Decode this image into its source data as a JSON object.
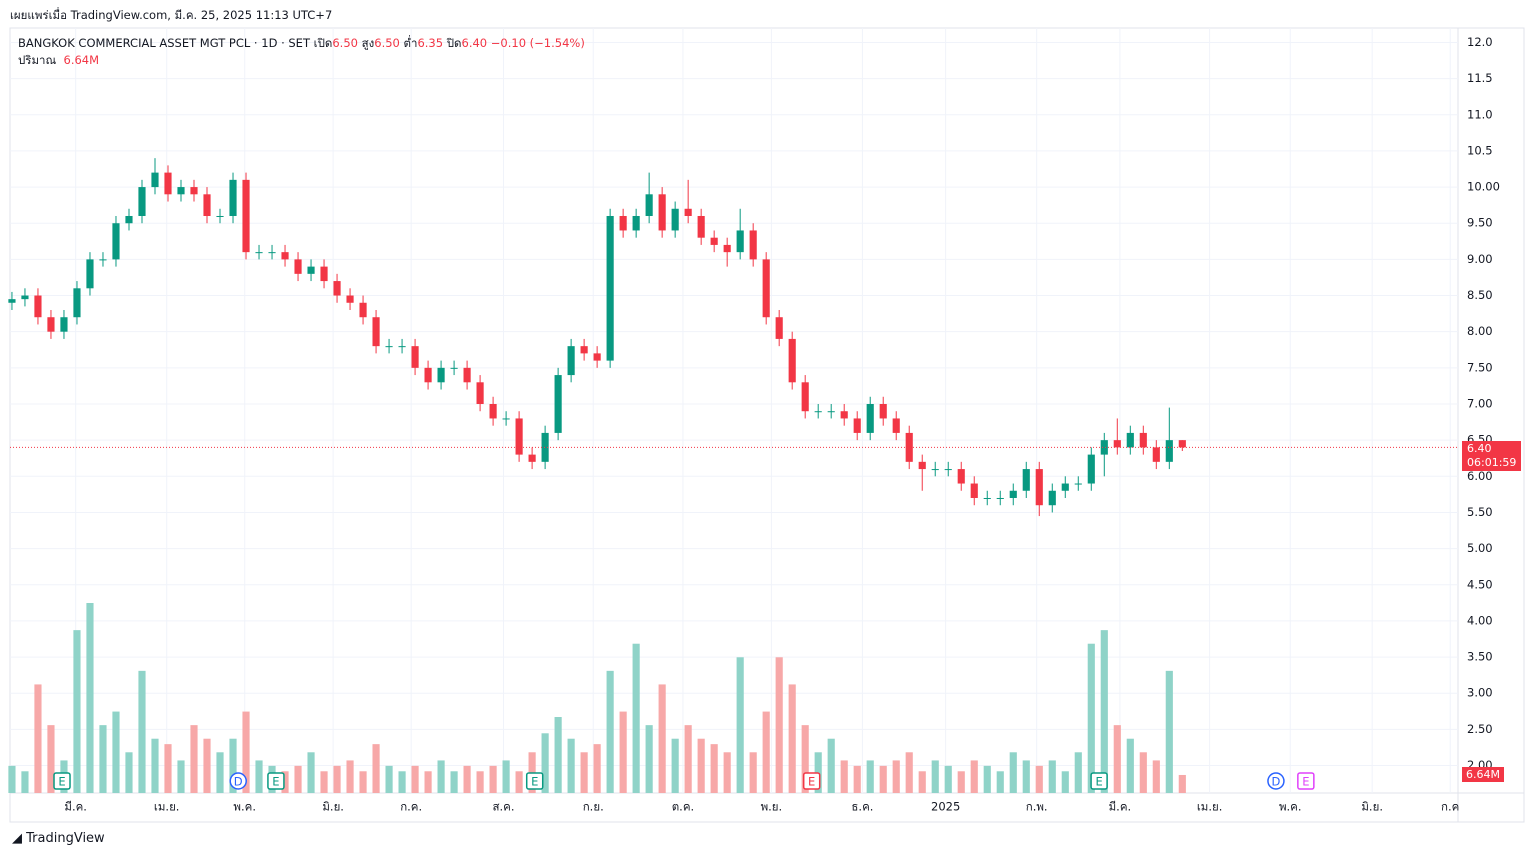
{
  "header": {
    "published": "เผยแพร่เมื่อ TradingView.com, มี.ค. 25, 2025 11:13 UTC+7",
    "brand": "TradingView"
  },
  "legend": {
    "symbol": "BANGKOK COMMERCIAL ASSET MGT PCL · 1D · SET",
    "open_label": "เปิด",
    "open": "6.50",
    "high_label": "สูง",
    "high": "6.50",
    "low_label": "ต่ำ",
    "low": "6.35",
    "close_label": "ปิด",
    "close": "6.40",
    "change": "−0.10 (−1.54%)",
    "volume_label": "ปริมาณ",
    "volume": "6.64M"
  },
  "price_tag": {
    "price": "6.40",
    "countdown": "06:01:59",
    "volume": "6.64M"
  },
  "chart_data": {
    "type": "candlestick",
    "up_color": "#089981",
    "down_color": "#f23645",
    "up_volume_color": "#8fd3c8",
    "down_volume_color": "#f7a8a8",
    "grid": true,
    "last_price": 6.4,
    "open": [
      8.4,
      8.45,
      8.5,
      8.2,
      8.0,
      8.2,
      8.6,
      9.0,
      9.0,
      9.5,
      9.6,
      10.0,
      10.2,
      9.9,
      10.0,
      9.9,
      9.6,
      9.6,
      10.1,
      9.1,
      9.1,
      9.1,
      9.0,
      8.8,
      8.9,
      8.7,
      8.5,
      8.4,
      8.2,
      7.8,
      7.8,
      7.8,
      7.5,
      7.3,
      7.5,
      7.5,
      7.3,
      7.0,
      6.8,
      6.8,
      6.3,
      6.2,
      6.6,
      7.4,
      7.8,
      7.7,
      7.6,
      9.6,
      9.4,
      9.6,
      9.9,
      9.4,
      9.7,
      9.6,
      9.3,
      9.2,
      9.1,
      9.4,
      9.0,
      8.2,
      7.9,
      7.3,
      6.9,
      6.9,
      6.9,
      6.8,
      6.6,
      7.0,
      6.8,
      6.6,
      6.2,
      6.1,
      6.1,
      6.1,
      5.9,
      5.7,
      5.7,
      5.7,
      5.8,
      6.1,
      5.6,
      5.8,
      5.9,
      5.9,
      6.3,
      6.5,
      6.4,
      6.6,
      6.4,
      6.2,
      6.5
    ],
    "high": [
      8.55,
      8.6,
      8.6,
      8.3,
      8.3,
      8.7,
      9.1,
      9.1,
      9.6,
      9.7,
      10.1,
      10.4,
      10.3,
      10.1,
      10.1,
      10.0,
      9.7,
      10.2,
      10.2,
      9.2,
      9.2,
      9.2,
      9.1,
      9.0,
      9.0,
      8.8,
      8.6,
      8.5,
      8.3,
      7.9,
      7.9,
      7.9,
      7.6,
      7.6,
      7.6,
      7.6,
      7.4,
      7.1,
      6.9,
      6.9,
      6.4,
      6.7,
      7.5,
      7.9,
      7.9,
      7.8,
      9.7,
      9.7,
      9.7,
      10.2,
      10.0,
      9.8,
      10.1,
      9.7,
      9.4,
      9.3,
      9.7,
      9.5,
      9.1,
      8.3,
      8.0,
      7.4,
      7.0,
      7.0,
      7.0,
      6.9,
      7.1,
      7.1,
      6.9,
      6.7,
      6.3,
      6.2,
      6.2,
      6.2,
      6.0,
      5.8,
      5.8,
      5.9,
      6.2,
      6.2,
      5.9,
      6.0,
      6.0,
      6.4,
      6.6,
      6.8,
      6.7,
      6.7,
      6.5,
      6.95,
      6.5
    ],
    "low": [
      8.3,
      8.35,
      8.1,
      7.9,
      7.9,
      8.1,
      8.5,
      8.9,
      8.9,
      9.4,
      9.5,
      9.9,
      9.8,
      9.8,
      9.8,
      9.5,
      9.5,
      9.5,
      9.0,
      9.0,
      9.0,
      8.9,
      8.7,
      8.7,
      8.6,
      8.4,
      8.3,
      8.1,
      7.7,
      7.7,
      7.7,
      7.4,
      7.2,
      7.2,
      7.4,
      7.2,
      6.9,
      6.7,
      6.7,
      6.2,
      6.1,
      6.1,
      6.5,
      7.3,
      7.6,
      7.5,
      7.5,
      9.3,
      9.3,
      9.5,
      9.3,
      9.3,
      9.5,
      9.2,
      9.1,
      8.9,
      9.0,
      8.9,
      8.1,
      7.8,
      7.2,
      6.8,
      6.8,
      6.8,
      6.7,
      6.5,
      6.5,
      6.7,
      6.5,
      6.1,
      5.8,
      6.0,
      6.0,
      5.8,
      5.6,
      5.6,
      5.6,
      5.6,
      5.7,
      5.45,
      5.5,
      5.7,
      5.8,
      5.8,
      6.0,
      6.3,
      6.3,
      6.3,
      6.1,
      6.1,
      6.35
    ],
    "close": [
      8.45,
      8.5,
      8.2,
      8.0,
      8.2,
      8.6,
      9.0,
      9.0,
      9.5,
      9.6,
      10.0,
      10.2,
      9.9,
      10.0,
      9.9,
      9.6,
      9.6,
      10.1,
      9.1,
      9.1,
      9.1,
      9.0,
      8.8,
      8.9,
      8.7,
      8.5,
      8.4,
      8.2,
      7.8,
      7.8,
      7.8,
      7.5,
      7.3,
      7.5,
      7.5,
      7.3,
      7.0,
      6.8,
      6.8,
      6.3,
      6.2,
      6.6,
      7.4,
      7.8,
      7.7,
      7.6,
      9.6,
      9.4,
      9.6,
      9.9,
      9.4,
      9.7,
      9.6,
      9.3,
      9.2,
      9.1,
      9.4,
      9.0,
      8.2,
      7.9,
      7.3,
      6.9,
      6.9,
      6.9,
      6.8,
      6.6,
      7.0,
      6.8,
      6.6,
      6.2,
      6.1,
      6.1,
      6.1,
      5.9,
      5.7,
      5.7,
      5.7,
      5.8,
      6.1,
      5.6,
      5.8,
      5.9,
      5.9,
      6.3,
      6.5,
      6.4,
      6.6,
      6.4,
      6.2,
      6.5,
      6.4
    ],
    "volume": [
      10,
      8,
      40,
      25,
      12,
      60,
      70,
      25,
      30,
      15,
      45,
      20,
      18,
      12,
      25,
      20,
      15,
      20,
      30,
      12,
      10,
      8,
      10,
      15,
      8,
      10,
      12,
      8,
      18,
      10,
      8,
      10,
      8,
      12,
      8,
      10,
      8,
      10,
      12,
      8,
      15,
      22,
      28,
      20,
      15,
      18,
      45,
      30,
      55,
      25,
      40,
      20,
      25,
      20,
      18,
      15,
      50,
      15,
      30,
      50,
      40,
      25,
      15,
      20,
      12,
      10,
      12,
      10,
      12,
      15,
      8,
      12,
      10,
      8,
      12,
      10,
      8,
      15,
      12,
      10,
      12,
      8,
      15,
      55,
      60,
      25,
      20,
      15,
      12,
      45,
      6.64
    ],
    "xlim": [
      -0.15,
      111.2
    ],
    "xticks": [
      {
        "value": 4.9,
        "label": "มี.ค."
      },
      {
        "value": 11.9,
        "label": "เม.ย."
      },
      {
        "value": 17.9,
        "label": "พ.ค."
      },
      {
        "value": 24.7,
        "label": "มิ.ย."
      },
      {
        "value": 30.7,
        "label": "ก.ค."
      },
      {
        "value": 37.8,
        "label": "ส.ค."
      },
      {
        "value": 44.7,
        "label": "ก.ย."
      },
      {
        "value": 51.6,
        "label": "ต.ค."
      },
      {
        "value": 58.4,
        "label": "พ.ย."
      },
      {
        "value": 65.4,
        "label": "ธ.ค."
      },
      {
        "value": 71.8,
        "label": "2025"
      },
      {
        "value": 78.8,
        "label": "ก.พ."
      },
      {
        "value": 85.2,
        "label": "มี.ค."
      },
      {
        "value": 92.1,
        "label": "เม.ย."
      },
      {
        "value": 98.3,
        "label": "พ.ค."
      },
      {
        "value": 104.6,
        "label": "มิ.ย."
      },
      {
        "value": 110.6,
        "label": "ก.ค"
      }
    ],
    "ylim": [
      1.62,
      12.2
    ],
    "yticks": [
      {
        "value": 12,
        "label": "12.0"
      },
      {
        "value": 11.5,
        "label": "11.5"
      },
      {
        "value": 11,
        "label": "11.0"
      },
      {
        "value": 10.5,
        "label": "10.5"
      },
      {
        "value": 10,
        "label": "10.00"
      },
      {
        "value": 9.5,
        "label": "9.50"
      },
      {
        "value": 9,
        "label": "9.00"
      },
      {
        "value": 8.5,
        "label": "8.50"
      },
      {
        "value": 8,
        "label": "8.00"
      },
      {
        "value": 7.5,
        "label": "7.50"
      },
      {
        "value": 7,
        "label": "7.00"
      },
      {
        "value": 6.5,
        "label": "6.50"
      },
      {
        "value": 6,
        "label": "6.00"
      },
      {
        "value": 5.5,
        "label": "5.50"
      },
      {
        "value": 5,
        "label": "5.00"
      },
      {
        "value": 4.5,
        "label": "4.50"
      },
      {
        "value": 4,
        "label": "4.00"
      },
      {
        "value": 3.5,
        "label": "3.50"
      },
      {
        "value": 3,
        "label": "3.00"
      },
      {
        "value": 2.5,
        "label": "2.50"
      },
      {
        "value": 2,
        "label": "2.00"
      }
    ],
    "events": [
      {
        "label": "E",
        "x": 3.85,
        "color": "#089981"
      },
      {
        "label": "D",
        "x": 17.4,
        "color": "#2962ff"
      },
      {
        "label": "E",
        "x": 20.3,
        "color": "#089981"
      },
      {
        "label": "E",
        "x": 40.2,
        "color": "#089981"
      },
      {
        "label": "E",
        "x": 61.5,
        "color": "#f23645"
      },
      {
        "label": "E",
        "x": 83.6,
        "color": "#089981"
      },
      {
        "label": "D",
        "x": 97.2,
        "color": "#2962ff"
      },
      {
        "label": "E",
        "x": 99.5,
        "color": "#e040fb"
      }
    ]
  }
}
